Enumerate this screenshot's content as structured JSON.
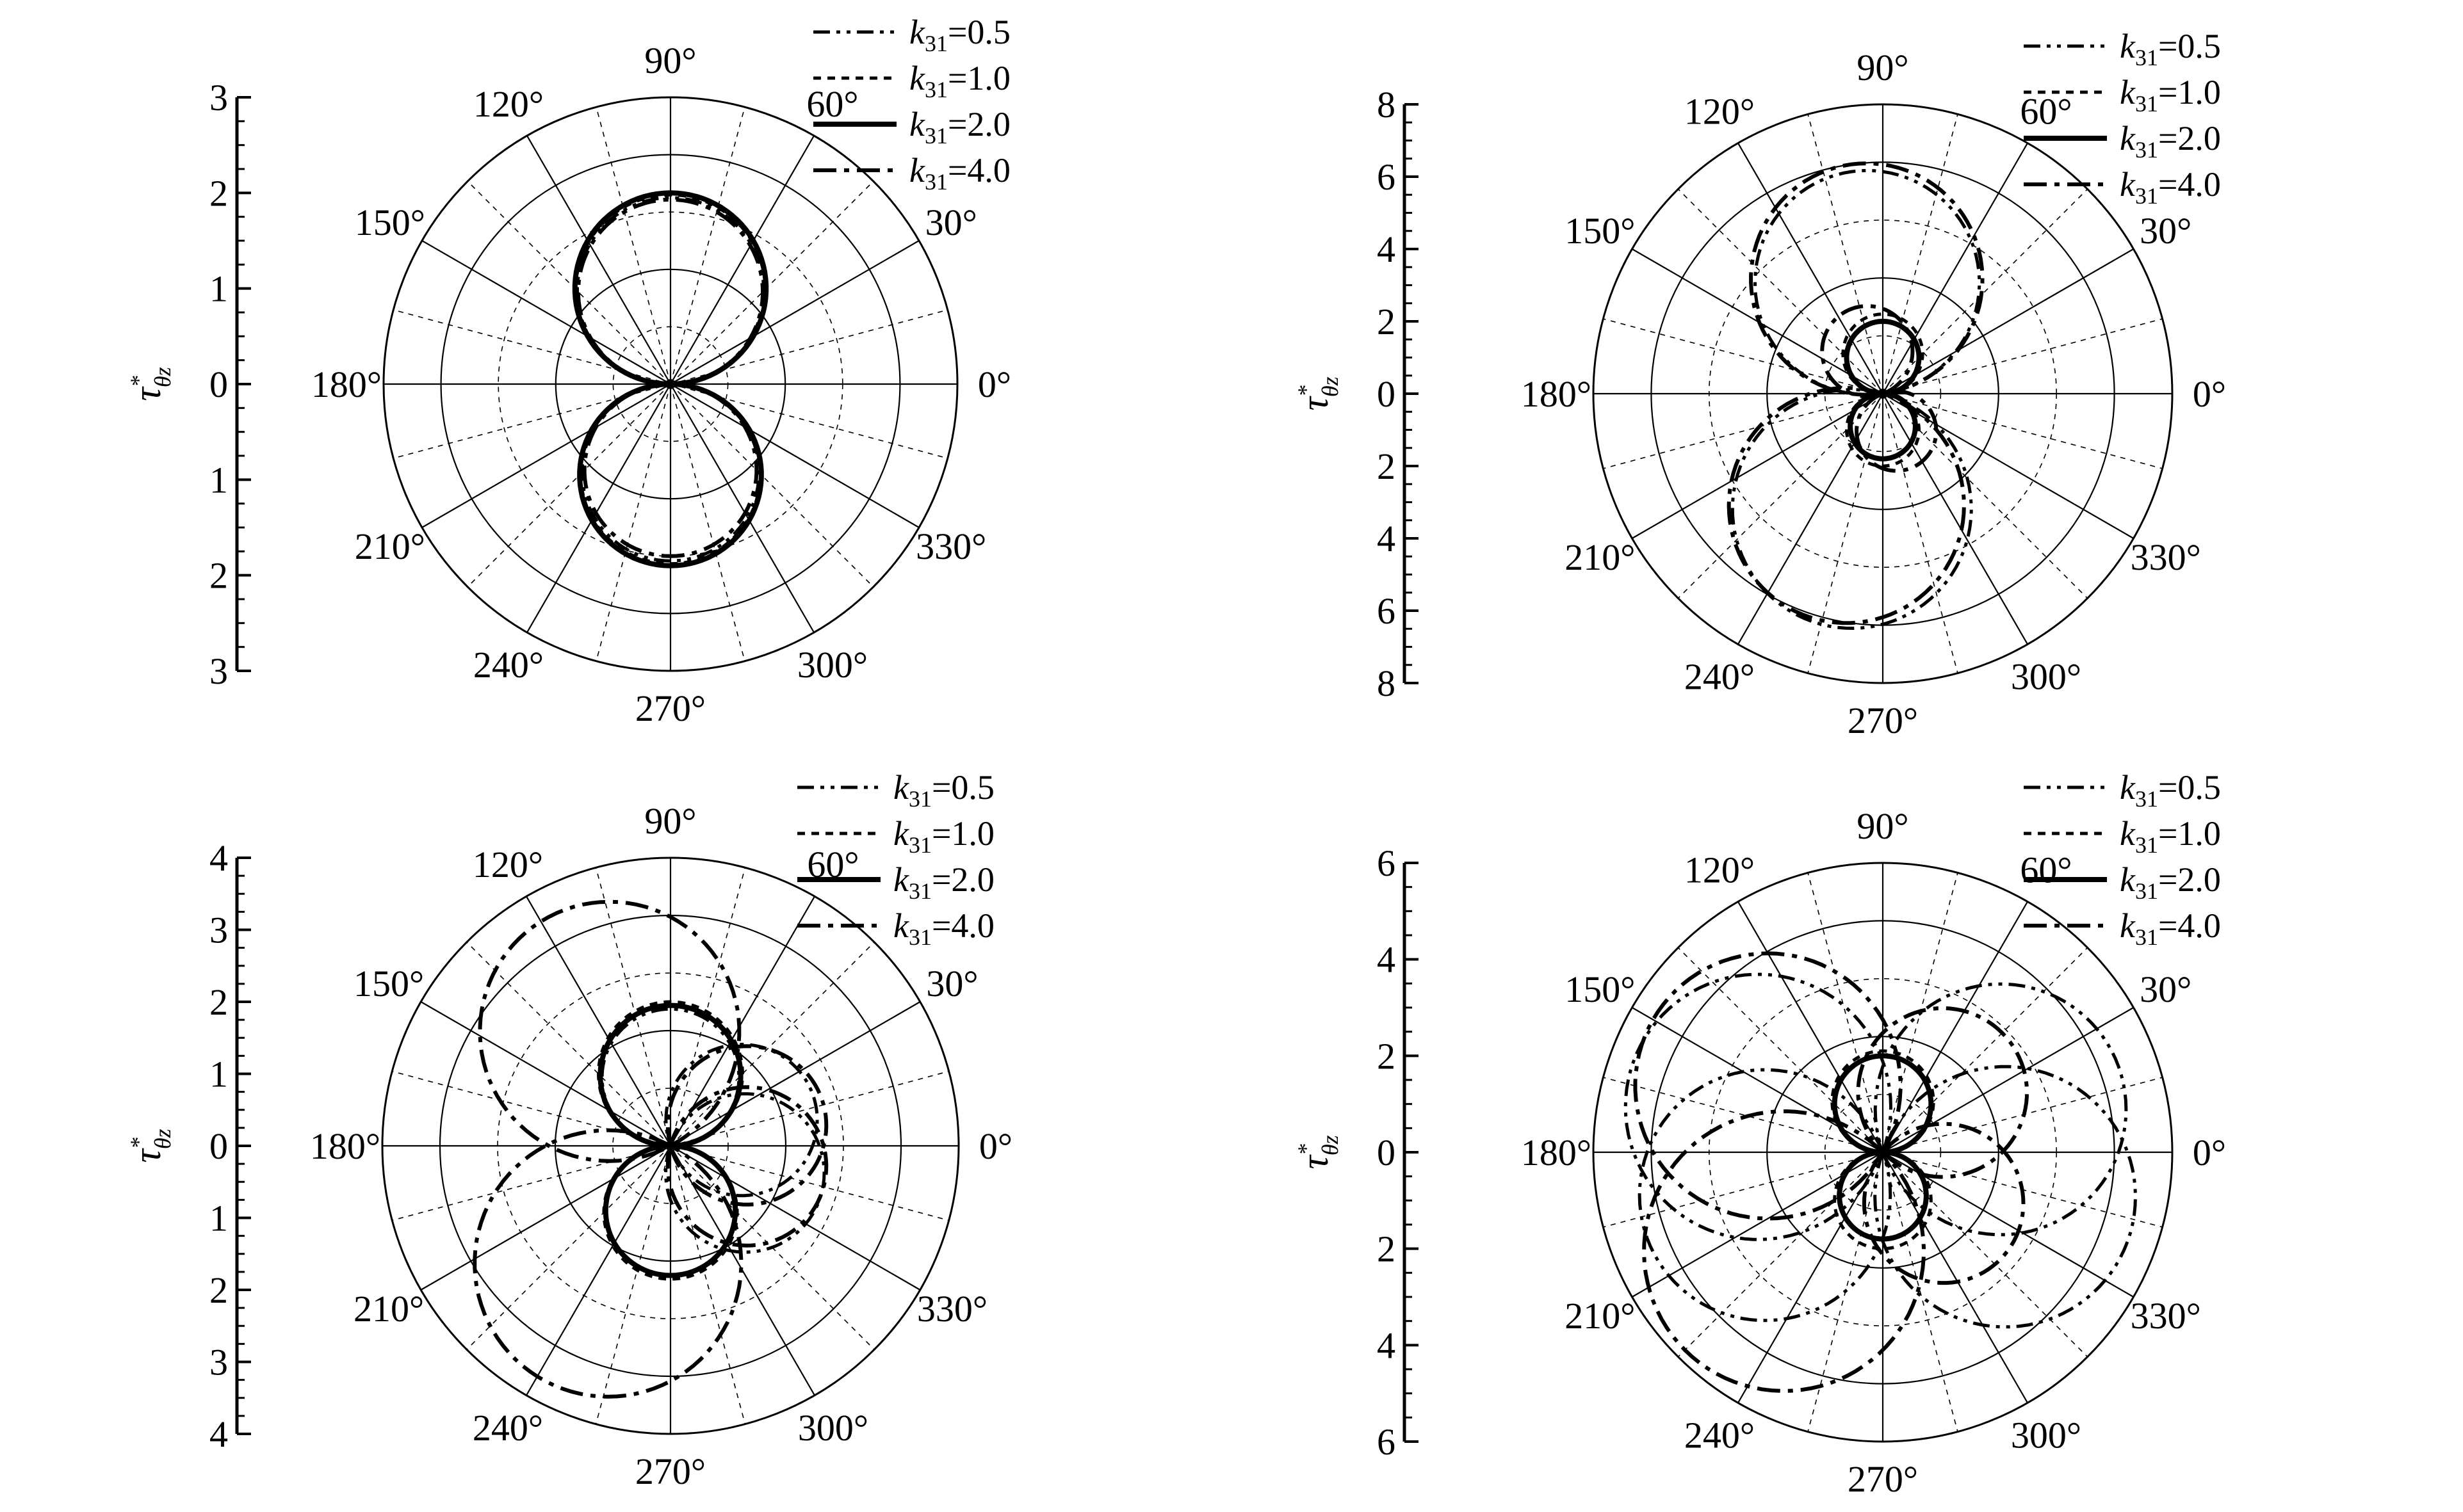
{
  "figure": {
    "angle_labels": [
      "0°",
      "30°",
      "60°",
      "90°",
      "120°",
      "150°",
      "180°",
      "210°",
      "240°",
      "270°",
      "300°",
      "330°"
    ],
    "ylabel": "τ*θz",
    "legend": [
      "k31=0.5",
      "k31=1.0",
      "k31=2.0",
      "k31=4.0"
    ],
    "colors": {
      "line": "#000000",
      "grid": "#000000",
      "background": "#ffffff"
    }
  },
  "chart_data": [
    {
      "type": "polar-line",
      "panel": "top-left",
      "r_max": 3,
      "r_ticks": [
        "3",
        "2",
        "1",
        "0",
        "1",
        "2",
        "3"
      ],
      "grid": true,
      "legend_position": "top-right",
      "series": [
        {
          "name": "k31=0.5",
          "style": "dash-dot-dot",
          "lobes": [
            {
              "theta": 90,
              "r": 1.95
            },
            {
              "theta": 270,
              "r": 1.85
            }
          ]
        },
        {
          "name": "k31=1.0",
          "style": "dotted",
          "lobes": [
            {
              "theta": 90,
              "r": 1.98
            },
            {
              "theta": 270,
              "r": 1.88
            }
          ]
        },
        {
          "name": "k31=2.0",
          "style": "solid",
          "lobes": [
            {
              "theta": 90,
              "r": 2.0
            },
            {
              "theta": 270,
              "r": 1.9
            }
          ]
        },
        {
          "name": "k31=4.0",
          "style": "dash-dot",
          "lobes": [
            {
              "theta": 90,
              "r": 1.93
            },
            {
              "theta": 270,
              "r": 1.8
            }
          ]
        }
      ]
    },
    {
      "type": "polar-line",
      "panel": "top-right",
      "r_max": 8,
      "r_ticks": [
        "8",
        "6",
        "4",
        "2",
        "0",
        "2",
        "4",
        "6",
        "8"
      ],
      "grid": true,
      "legend_position": "top-right",
      "series": [
        {
          "name": "k31=0.5",
          "style": "dash-dot-dot",
          "lobes": [
            {
              "theta": 98,
              "r": 6.2
            },
            {
              "theta": 255,
              "r": 6.6
            }
          ]
        },
        {
          "name": "k31=1.0",
          "style": "dotted",
          "lobes": [
            {
              "theta": 90,
              "r": 2.2
            },
            {
              "theta": 270,
              "r": 2.0
            }
          ]
        },
        {
          "name": "k31=2.0",
          "style": "solid",
          "lobes": [
            {
              "theta": 90,
              "r": 2.0
            },
            {
              "theta": 270,
              "r": 1.8
            }
          ]
        },
        {
          "name": "k31=4.0",
          "style": "dash-dot",
          "lobes": [
            {
              "theta": 98,
              "r": 6.4
            },
            {
              "theta": 252,
              "r": 6.5
            },
            {
              "theta": 110,
              "r": 2.5
            },
            {
              "theta": 290,
              "r": 2.2
            }
          ]
        }
      ]
    },
    {
      "type": "polar-line",
      "panel": "bottom-left",
      "r_max": 4,
      "r_ticks": [
        "4",
        "3",
        "2",
        "1",
        "0",
        "1",
        "2",
        "3",
        "4"
      ],
      "grid": true,
      "legend_position": "top-right",
      "series": [
        {
          "name": "k31=0.5",
          "style": "dash-dot-dot",
          "lobes": [
            {
              "theta": 90,
              "r": 1.9
            },
            {
              "theta": 270,
              "r": 1.8
            },
            {
              "theta": 20,
              "r": 2.1
            },
            {
              "theta": 340,
              "r": 2.2
            }
          ]
        },
        {
          "name": "k31=1.0",
          "style": "dotted",
          "lobes": [
            {
              "theta": 90,
              "r": 2.0
            },
            {
              "theta": 270,
              "r": 1.85
            }
          ]
        },
        {
          "name": "k31=2.0",
          "style": "solid",
          "lobes": [
            {
              "theta": 90,
              "r": 1.95
            },
            {
              "theta": 270,
              "r": 1.8
            }
          ]
        },
        {
          "name": "k31=4.0",
          "style": "dash-dot",
          "lobes": [
            {
              "theta": 118,
              "r": 3.6
            },
            {
              "theta": 242,
              "r": 3.7
            },
            {
              "theta": 15,
              "r": 2.2
            },
            {
              "theta": 345,
              "r": 2.2
            }
          ]
        }
      ]
    },
    {
      "type": "polar-line",
      "panel": "bottom-right",
      "r_max": 6,
      "r_ticks": [
        "6",
        "4",
        "2",
        "0",
        "2",
        "4",
        "6"
      ],
      "grid": true,
      "legend_position": "top-right",
      "series": [
        {
          "name": "k31=0.5",
          "style": "dash-dot-dot",
          "lobes": [
            {
              "theta": 160,
              "r": 5.5
            },
            {
              "theta": 200,
              "r": 5.2
            },
            {
              "theta": 20,
              "r": 5.2
            },
            {
              "theta": 340,
              "r": 5.4
            }
          ]
        },
        {
          "name": "k31=1.0",
          "style": "dotted",
          "lobes": [
            {
              "theta": 90,
              "r": 2.1
            },
            {
              "theta": 270,
              "r": 2.0
            }
          ]
        },
        {
          "name": "k31=2.0",
          "style": "solid",
          "lobes": [
            {
              "theta": 90,
              "r": 2.0
            },
            {
              "theta": 270,
              "r": 1.8
            }
          ]
        },
        {
          "name": "k31=4.0",
          "style": "dash-dot",
          "lobes": [
            {
              "theta": 150,
              "r": 5.5
            },
            {
              "theta": 225,
              "r": 5.8
            },
            {
              "theta": 45,
              "r": 3.5
            },
            {
              "theta": 320,
              "r": 3.3
            }
          ]
        }
      ]
    }
  ]
}
